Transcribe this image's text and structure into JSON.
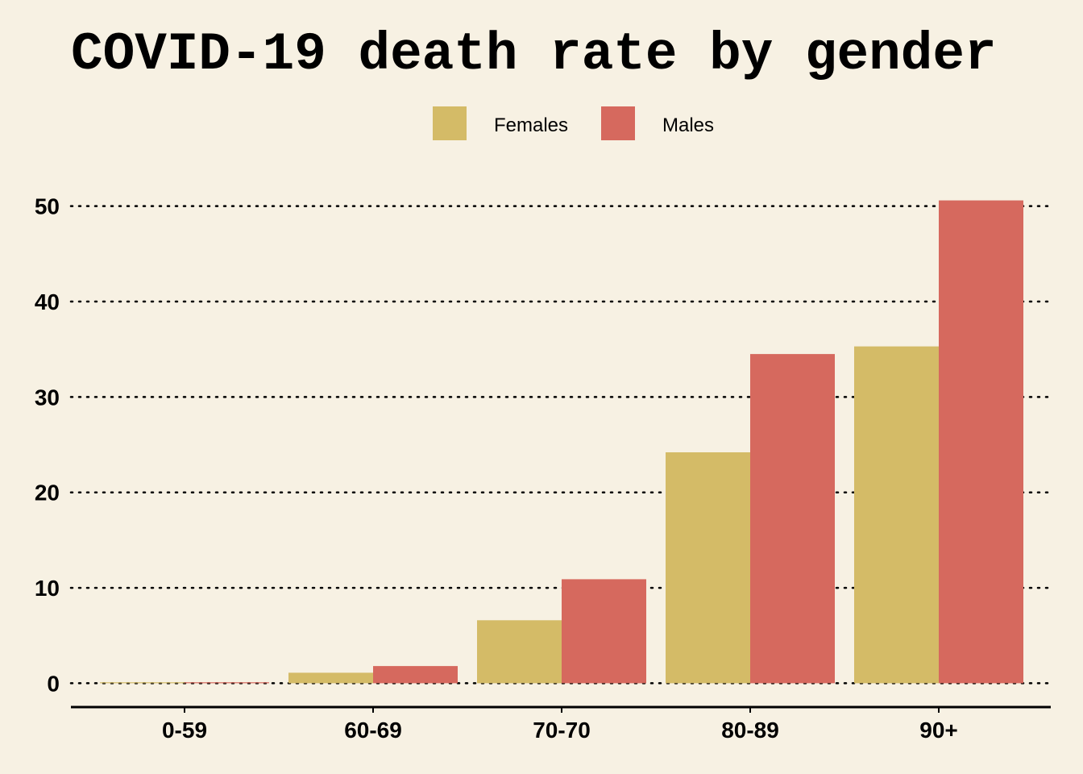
{
  "chart_data": {
    "type": "bar",
    "title": "COVID-19 death rate by gender",
    "categories": [
      "0-59",
      "60-69",
      "70-70",
      "80-89",
      "90+"
    ],
    "series": [
      {
        "name": "Females",
        "color": "#d4bb67",
        "values": [
          0.1,
          1.1,
          6.6,
          24.2,
          35.3
        ]
      },
      {
        "name": "Males",
        "color": "#d6695e",
        "values": [
          0.1,
          1.8,
          10.9,
          34.5,
          50.6
        ]
      }
    ],
    "ylim": [
      -2.5,
      52
    ],
    "yticks": [
      0,
      10,
      20,
      30,
      40,
      50
    ],
    "ytick_labels": [
      "0",
      "10",
      "20",
      "30",
      "40",
      "50"
    ],
    "grid": true,
    "legend_position": "top-center",
    "xlabel": "",
    "ylabel": ""
  }
}
